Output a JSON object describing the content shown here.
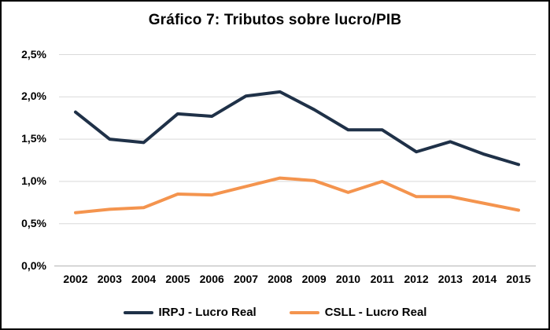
{
  "window": {
    "background_color": "#FFFFFF",
    "border_color": "#000000"
  },
  "chart_data": {
    "type": "line",
    "title": "Gráfico 7: Tributos sobre lucro/PIB",
    "categories": [
      "2002",
      "2003",
      "2004",
      "2005",
      "2006",
      "2007",
      "2008",
      "2009",
      "2010",
      "2011",
      "2012",
      "2013",
      "2014",
      "2015"
    ],
    "series": [
      {
        "name": "IRPJ - Lucro Real",
        "color": "#1F3148",
        "values": [
          1.82,
          1.5,
          1.46,
          1.8,
          1.77,
          2.01,
          2.06,
          1.85,
          1.61,
          1.61,
          1.35,
          1.47,
          1.32,
          1.2
        ]
      },
      {
        "name": "CSLL - Lucro Real",
        "color": "#F4944E",
        "values": [
          0.63,
          0.67,
          0.69,
          0.85,
          0.84,
          0.94,
          1.04,
          1.01,
          0.87,
          1.0,
          0.82,
          0.82,
          0.74,
          0.66
        ]
      }
    ],
    "xlabel": "",
    "ylabel": "",
    "y_axis": {
      "min": 0,
      "max": 2.5,
      "step": 0.5,
      "tick_labels": [
        "0,0%",
        "0,5%",
        "1,0%",
        "1,5%",
        "2,0%",
        "2,5%"
      ],
      "decimal_separator": ","
    },
    "grid": true,
    "gridline_color": "#D9D9D9",
    "axis_line_color": "#BFBFBF",
    "legend_position": "bottom"
  }
}
